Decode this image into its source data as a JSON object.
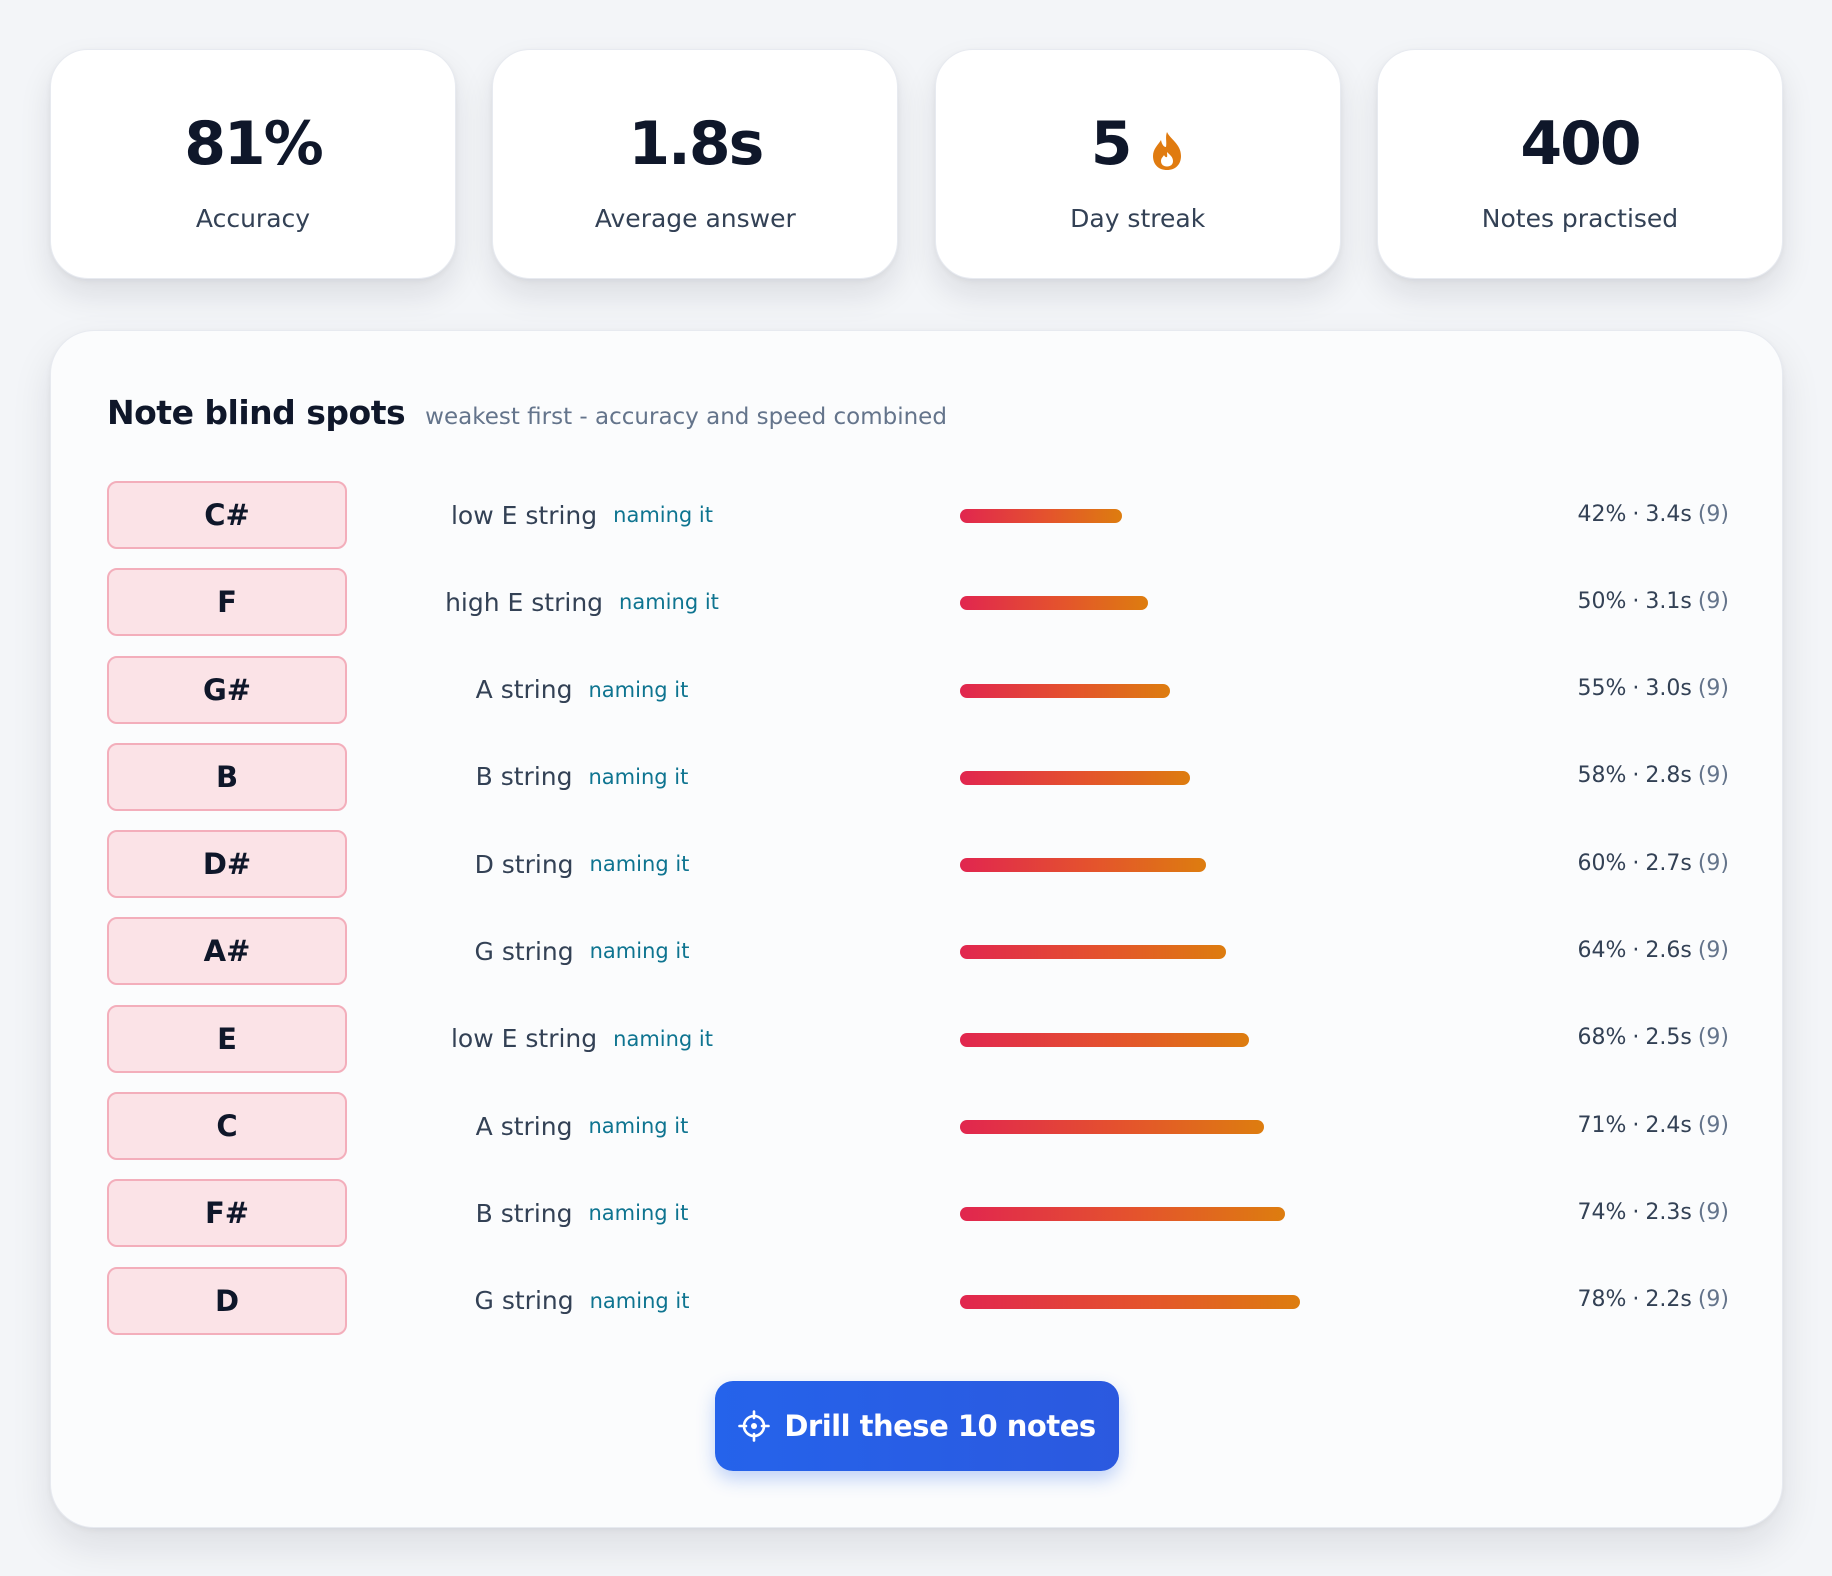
{
  "stats": [
    {
      "value": "81%",
      "label": "Accuracy"
    },
    {
      "value": "1.8s",
      "label": "Average answer"
    },
    {
      "value": "5",
      "label": "Day streak",
      "icon": "flame-icon"
    },
    {
      "value": "400",
      "label": "Notes practised"
    }
  ],
  "blind_spots": {
    "title": "Note blind spots",
    "subtitle": "weakest first - accuracy and speed combined",
    "rows": [
      {
        "note": "C#",
        "string": "low E string",
        "mode": "naming it",
        "accuracy": "42%",
        "time": "3.4s",
        "count": "(9)",
        "score": 0.42
      },
      {
        "note": "F",
        "string": "high E string",
        "mode": "naming it",
        "accuracy": "50%",
        "time": "3.1s",
        "count": "(9)",
        "score": 0.5
      },
      {
        "note": "G#",
        "string": "A string",
        "mode": "naming it",
        "accuracy": "55%",
        "time": "3.0s",
        "count": "(9)",
        "score": 0.55
      },
      {
        "note": "B",
        "string": "B string",
        "mode": "naming it",
        "accuracy": "58%",
        "time": "2.8s",
        "count": "(9)",
        "score": 0.58
      },
      {
        "note": "D#",
        "string": "D string",
        "mode": "naming it",
        "accuracy": "60%",
        "time": "2.7s",
        "count": "(9)",
        "score": 0.6
      },
      {
        "note": "A#",
        "string": "G string",
        "mode": "naming it",
        "accuracy": "64%",
        "time": "2.6s",
        "count": "(9)",
        "score": 0.64
      },
      {
        "note": "E",
        "string": "low E string",
        "mode": "naming it",
        "accuracy": "68%",
        "time": "2.5s",
        "count": "(9)",
        "score": 0.68
      },
      {
        "note": "C",
        "string": "A string",
        "mode": "naming it",
        "accuracy": "71%",
        "time": "2.4s",
        "count": "(9)",
        "score": 0.71
      },
      {
        "note": "F#",
        "string": "B string",
        "mode": "naming it",
        "accuracy": "74%",
        "time": "2.3s",
        "count": "(9)",
        "score": 0.74
      },
      {
        "note": "D",
        "string": "G string",
        "mode": "naming it",
        "accuracy": "78%",
        "time": "2.2s",
        "count": "(9)",
        "score": 0.78
      }
    ],
    "separator": "·"
  },
  "drill_button": {
    "label": "Drill these 10 notes",
    "icon": "crosshair-icon"
  },
  "colors": {
    "bar_start": "#e1264f",
    "bar_end": "#dd7d0f",
    "chip_bg": "#fbe3e7",
    "chip_border": "#f3aebb",
    "mode_tag": "#0e7490",
    "button": "#2563eb",
    "flame": "#e07b10"
  }
}
